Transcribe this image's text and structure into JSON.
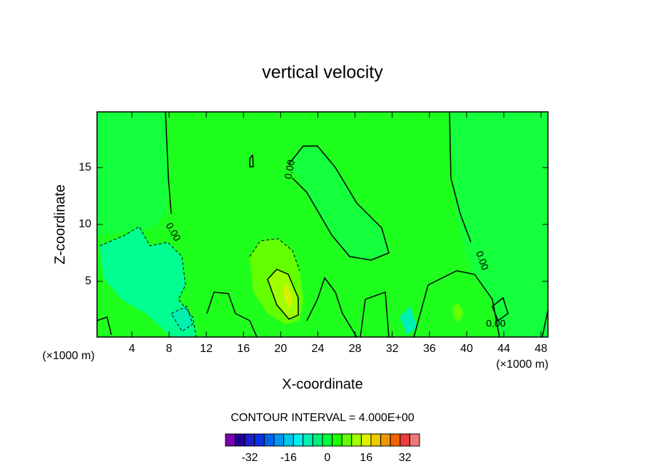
{
  "chart_data": {
    "type": "contour",
    "title": "vertical velocity",
    "x_label": "X-coordinate",
    "y_label": "Z-coordinate",
    "x_unit": "(×1000 m)",
    "xlim": [
      0.25,
      48.75
    ],
    "xticks": [
      4,
      8,
      12,
      16,
      20,
      24,
      28,
      32,
      36,
      40,
      44,
      48
    ],
    "ylim": [
      0.1,
      19.9
    ],
    "yticks": [
      5,
      10,
      15
    ],
    "contour_labels": [
      "0.00",
      "0.00",
      "0.00",
      "0.00"
    ],
    "contour_interval_text": "CONTOUR INTERVAL = 4.000E+00",
    "colorbar": {
      "range": [
        -42,
        38
      ],
      "ticks": [
        -32,
        -16,
        0,
        16,
        32
      ],
      "colors": [
        "#7a00b4",
        "#1e0096",
        "#1e1ec8",
        "#0a32e6",
        "#0064f0",
        "#0096f0",
        "#00c8f0",
        "#00f0f0",
        "#00f0b4",
        "#00f078",
        "#00ff3c",
        "#1eff00",
        "#64ff00",
        "#a0ff00",
        "#dcf000",
        "#f0c800",
        "#f09600",
        "#f06400",
        "#f03c3c",
        "#f07878"
      ]
    }
  }
}
